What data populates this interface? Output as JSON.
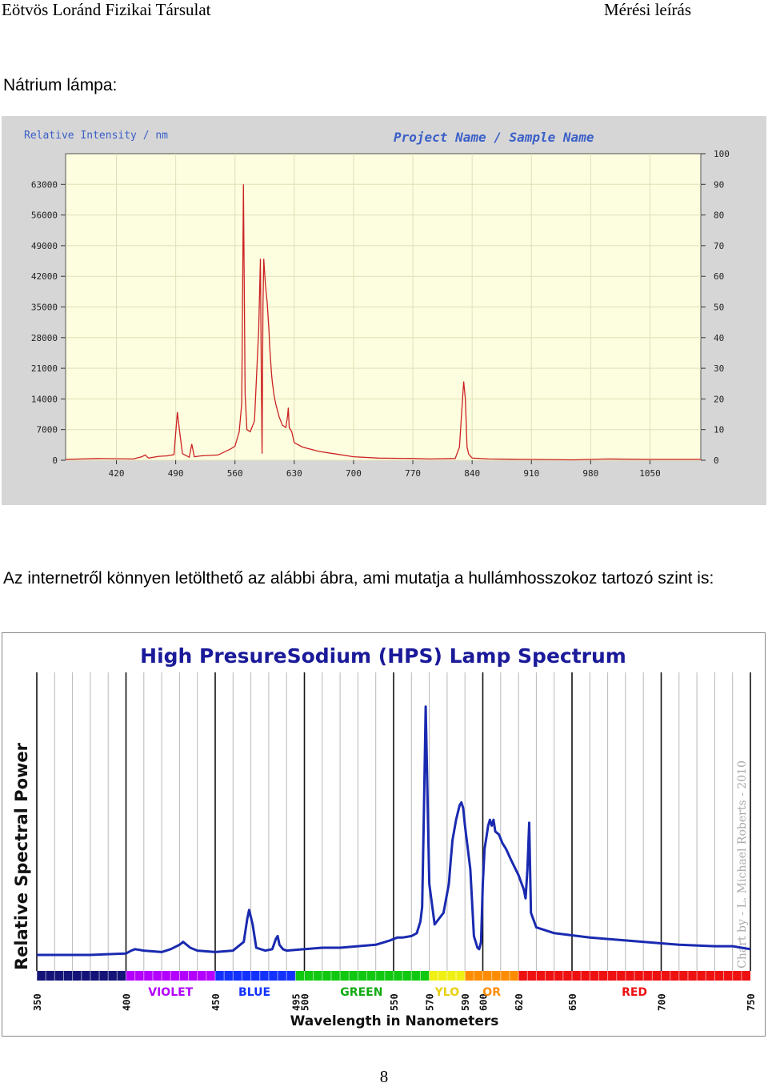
{
  "header": {
    "left": "Eötvös Loránd Fizikai Társulat",
    "right": "Mérési leírás"
  },
  "section1_title": "Nátrium lámpa:",
  "paragraph": "Az internetről könnyen letölthető az alábbi ábra, ami mutatja a hullámhosszokoz tartozó szint is:",
  "page_number": "8",
  "chart_data": [
    {
      "type": "line",
      "title": "Project Name / Sample Name",
      "ylabel": "Relative Intensity / nm",
      "xlim": [
        360,
        1110
      ],
      "ylim": [
        0,
        70000
      ],
      "y2lim": [
        0,
        100
      ],
      "x_ticks": [
        420,
        490,
        560,
        630,
        700,
        770,
        840,
        910,
        980,
        1050
      ],
      "y_ticks": [
        0,
        7000,
        14000,
        21000,
        28000,
        35000,
        42000,
        49000,
        56000,
        63000
      ],
      "y2_ticks": [
        0,
        10,
        20,
        30,
        40,
        50,
        60,
        70,
        80,
        90,
        100
      ],
      "grid": true,
      "colors": {
        "line": "#cc2222",
        "plot_bg": "#fdfde0",
        "frame_bg": "#d6d6d6",
        "grid": "#e0e0b8"
      },
      "series": [
        {
          "x": [
            360,
            400,
            440,
            450,
            454,
            458,
            470,
            480,
            488,
            492,
            495,
            498,
            506,
            509,
            512,
            520,
            540,
            555,
            560,
            565,
            568,
            570,
            572,
            574,
            578,
            583,
            588,
            590,
            591,
            592,
            593,
            594,
            596,
            598,
            600,
            601,
            602,
            603,
            604,
            606,
            608,
            612,
            616,
            620,
            622,
            623,
            624,
            627,
            630,
            640,
            660,
            680,
            700,
            730,
            770,
            790,
            820,
            825,
            830,
            832,
            834,
            836,
            840,
            860,
            900,
            960,
            1000,
            1050,
            1110
          ],
          "y": [
            200,
            400,
            300,
            800,
            1200,
            500,
            900,
            1000,
            1300,
            11000,
            6000,
            1500,
            700,
            3700,
            800,
            1000,
            1200,
            2600,
            3200,
            6500,
            13000,
            63000,
            15000,
            7000,
            6500,
            9000,
            30000,
            46000,
            20000,
            1500,
            35000,
            46000,
            40000,
            36000,
            30000,
            26000,
            23000,
            20000,
            18000,
            15000,
            13000,
            10000,
            8000,
            7500,
            10000,
            12000,
            7500,
            6500,
            4000,
            3000,
            2000,
            1400,
            800,
            500,
            400,
            300,
            400,
            3000,
            18000,
            14000,
            3000,
            1400,
            500,
            300,
            200,
            100,
            300,
            200,
            200
          ]
        }
      ]
    },
    {
      "type": "line",
      "title": "High PresureSodium (HPS) Lamp Spectrum",
      "xlabel": "Wavelength in Nanometers",
      "ylabel": "Relative Spectral Power",
      "xlim": [
        350,
        750
      ],
      "x_ticks": [
        350,
        400,
        450,
        495,
        500,
        550,
        570,
        590,
        600,
        620,
        650,
        700,
        750
      ],
      "band_labels": [
        "VIOLET",
        "BLUE",
        "GREEN",
        "YLO",
        "OR",
        "RED"
      ],
      "bands": [
        {
          "from": 350,
          "to": 400,
          "color": "#141478"
        },
        {
          "from": 400,
          "to": 450,
          "color": "#b400ff"
        },
        {
          "from": 450,
          "to": 495,
          "color": "#1432ff"
        },
        {
          "from": 495,
          "to": 570,
          "color": "#11c811"
        },
        {
          "from": 570,
          "to": 590,
          "color": "#f0f014"
        },
        {
          "from": 590,
          "to": 620,
          "color": "#ff8c00"
        },
        {
          "from": 620,
          "to": 750,
          "color": "#ee1111"
        }
      ],
      "band_label_colors": [
        "#b400ff",
        "#1432ff",
        "#11aa11",
        "#e8d010",
        "#ff8c00",
        "#ee1111"
      ],
      "credit": "Chart by - L. Michael Roberts - 2010",
      "colors": {
        "line": "#1a2ab0",
        "title": "#1a1a9a",
        "grid": "#b8b8b8"
      },
      "series": [
        {
          "x": [
            350,
            360,
            380,
            400,
            403,
            405,
            410,
            420,
            425,
            430,
            432,
            436,
            440,
            450,
            460,
            466,
            468,
            469,
            471,
            473,
            478,
            482,
            484,
            485,
            486,
            488,
            490,
            500,
            510,
            520,
            530,
            540,
            548,
            552,
            555,
            560,
            563,
            564,
            565,
            566,
            567,
            568,
            569,
            570,
            573,
            578,
            581,
            582,
            583,
            585,
            587,
            588,
            589,
            590,
            593,
            595,
            597,
            598,
            599,
            600,
            601,
            602,
            603,
            604,
            605,
            606,
            607,
            609,
            611,
            613,
            616,
            620,
            623,
            624,
            625,
            626,
            627,
            630,
            635,
            640,
            660,
            680,
            700,
            710,
            730,
            740,
            745,
            750
          ],
          "y": [
            0.055,
            0.055,
            0.055,
            0.06,
            0.07,
            0.075,
            0.07,
            0.065,
            0.075,
            0.09,
            0.1,
            0.08,
            0.07,
            0.065,
            0.07,
            0.1,
            0.18,
            0.21,
            0.16,
            0.08,
            0.07,
            0.075,
            0.11,
            0.12,
            0.09,
            0.075,
            0.07,
            0.075,
            0.08,
            0.08,
            0.085,
            0.09,
            0.105,
            0.115,
            0.115,
            0.12,
            0.13,
            0.15,
            0.17,
            0.22,
            0.55,
            0.91,
            0.6,
            0.3,
            0.16,
            0.2,
            0.3,
            0.38,
            0.45,
            0.52,
            0.57,
            0.58,
            0.56,
            0.5,
            0.35,
            0.12,
            0.08,
            0.075,
            0.1,
            0.3,
            0.42,
            0.46,
            0.5,
            0.52,
            0.5,
            0.52,
            0.48,
            0.47,
            0.44,
            0.42,
            0.38,
            0.33,
            0.28,
            0.25,
            0.35,
            0.51,
            0.2,
            0.15,
            0.14,
            0.13,
            0.115,
            0.105,
            0.095,
            0.09,
            0.085,
            0.085,
            0.08,
            0.075
          ]
        }
      ]
    }
  ]
}
